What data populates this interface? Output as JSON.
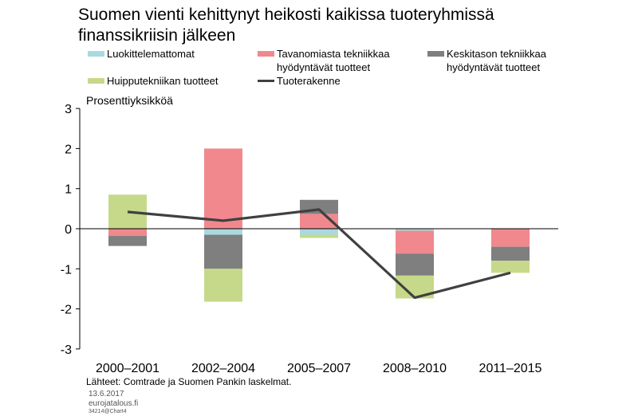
{
  "title_lines": [
    "Suomen vienti kehittynyt heikosti kaikissa tuoteryhmissä",
    "finanssikriisin jälkeen"
  ],
  "legend": [
    {
      "lines": [
        "Luokittelemattomat"
      ],
      "color": "#a8dadf",
      "kind": "bar"
    },
    {
      "lines": [
        "Tavanomiasta tekniikkaa",
        "hyödyntävät tuotteet"
      ],
      "color": "#f0888e",
      "kind": "bar"
    },
    {
      "lines": [
        "Keskitason tekniikkaa",
        "hyödyntävät tuotteet"
      ],
      "color": "#7f7f7f",
      "kind": "bar"
    },
    {
      "lines": [
        "Huipputekniikan tuotteet"
      ],
      "color": "#c6d98a",
      "kind": "bar"
    },
    {
      "lines": [
        "Tuoterakenne"
      ],
      "color": "#404040",
      "kind": "line"
    }
  ],
  "footer": {
    "source": "Lähteet: Comtrade ja Suomen Pankin laskelmat.",
    "date": "13.6.2017",
    "site": "eurojatalous.fi",
    "code": "34214@Chart4"
  },
  "chart_data": {
    "type": "bar",
    "stacked": true,
    "ylabel": "Prosenttiyksikköä",
    "ylim": [
      -3,
      3
    ],
    "yticks": [
      3,
      2,
      1,
      0,
      -1,
      -2,
      -3
    ],
    "categories": [
      "2000–2001",
      "2002–2004",
      "2005–2007",
      "2008–2010",
      "2011–2015"
    ],
    "series": [
      {
        "name": "Luokittelemattomat",
        "color": "#a8dadf",
        "values": [
          0.0,
          -0.15,
          -0.15,
          -0.05,
          0.0
        ]
      },
      {
        "name": "Tavanomiasta tekniikkaa hyödyntävät tuotteet",
        "color": "#f0888e",
        "values": [
          -0.18,
          2.0,
          0.37,
          -0.57,
          -0.45
        ]
      },
      {
        "name": "Keskitason tekniikkaa hyödyntävät tuotteet",
        "color": "#7f7f7f",
        "values": [
          -0.25,
          -0.85,
          0.35,
          -0.55,
          -0.35
        ]
      },
      {
        "name": "Huipputekniikan tuotteet",
        "color": "#c6d98a",
        "values": [
          0.85,
          -0.82,
          -0.08,
          -0.57,
          -0.3
        ]
      }
    ],
    "line": {
      "name": "Tuoterakenne",
      "color": "#404040",
      "values": [
        0.42,
        0.2,
        0.48,
        -1.72,
        -1.1
      ]
    },
    "grid": false,
    "legend_position": "top"
  }
}
